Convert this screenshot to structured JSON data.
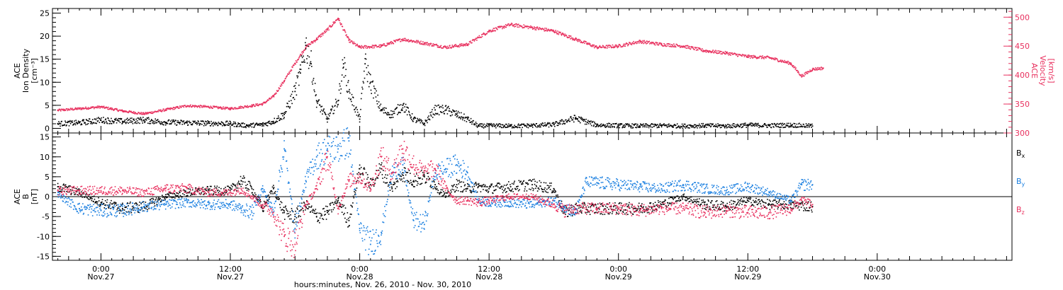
{
  "colors": {
    "black": "#000000",
    "pink": "#e8305e",
    "blue": "#1a7fe0",
    "axis": "#000000"
  },
  "xaxis": {
    "title": "hours:minutes, Nov. 26, 2010 - Nov. 30, 2010",
    "range_hours": [
      -4.5,
      84.5
    ],
    "ticks": [
      {
        "t": 0,
        "time": "0:00",
        "date": "Nov.27"
      },
      {
        "t": 12,
        "time": "12:00",
        "date": "Nov.27"
      },
      {
        "t": 24,
        "time": "0:00",
        "date": "Nov.28"
      },
      {
        "t": 36,
        "time": "12:00",
        "date": "Nov.28"
      },
      {
        "t": 48,
        "time": "0:00",
        "date": "Nov.29"
      },
      {
        "t": 60,
        "time": "12:00",
        "date": "Nov.29"
      },
      {
        "t": 72,
        "time": "0:00",
        "date": "Nov.30"
      }
    ]
  },
  "chart_data": [
    {
      "type": "scatter",
      "ylabel_left": [
        "ACE",
        "Ion Density",
        "[cm⁻³]"
      ],
      "ylabel_right": [
        "ACE",
        "Velocity",
        "[km/s]"
      ],
      "ylim_left": [
        -1,
        26
      ],
      "yticks_left": [
        0,
        5,
        10,
        15,
        20,
        25
      ],
      "ylim_right": [
        300,
        515
      ],
      "yticks_right": [
        300,
        350,
        400,
        450,
        500
      ],
      "series": [
        {
          "axis": "left",
          "color": "black",
          "points": [
            [
              -4,
              1
            ],
            [
              -2,
              1.2
            ],
            [
              0,
              1.8
            ],
            [
              2,
              1.5
            ],
            [
              4,
              1.8
            ],
            [
              6,
              1.3
            ],
            [
              8,
              1.2
            ],
            [
              10,
              1.1
            ],
            [
              12,
              1
            ],
            [
              13.5,
              0.6
            ],
            [
              15,
              0.8
            ],
            [
              16,
              1.5
            ],
            [
              17,
              3
            ],
            [
              18,
              8
            ],
            [
              18.5,
              12
            ],
            [
              19,
              18
            ],
            [
              19.5,
              14
            ],
            [
              20,
              6
            ],
            [
              21,
              2
            ],
            [
              22,
              6
            ],
            [
              22.5,
              14
            ],
            [
              23,
              8
            ],
            [
              24,
              2
            ],
            [
              24.5,
              14
            ],
            [
              25,
              10
            ],
            [
              26,
              4
            ],
            [
              27,
              3
            ],
            [
              28,
              5
            ],
            [
              29,
              2
            ],
            [
              30,
              1
            ],
            [
              31,
              4
            ],
            [
              32,
              4
            ],
            [
              33,
              3
            ],
            [
              34,
              2
            ],
            [
              35,
              0.5
            ],
            [
              36,
              0.6
            ],
            [
              38,
              0.5
            ],
            [
              40,
              0.6
            ],
            [
              42,
              0.8
            ],
            [
              44,
              2.2
            ],
            [
              46,
              0.7
            ],
            [
              48,
              0.6
            ],
            [
              50,
              0.5
            ],
            [
              52,
              0.6
            ],
            [
              54,
              0.5
            ],
            [
              56,
              0.6
            ],
            [
              58,
              0.5
            ],
            [
              60,
              0.7
            ],
            [
              62,
              0.6
            ],
            [
              64,
              0.7
            ],
            [
              66,
              0.5
            ]
          ]
        },
        {
          "axis": "right",
          "color": "pink",
          "points": [
            [
              -4,
              339
            ],
            [
              -2,
              342
            ],
            [
              0,
              345
            ],
            [
              2,
              338
            ],
            [
              4,
              333
            ],
            [
              6,
              340
            ],
            [
              8,
              347
            ],
            [
              10,
              345
            ],
            [
              12,
              342
            ],
            [
              14,
              347
            ],
            [
              15,
              350
            ],
            [
              16,
              363
            ],
            [
              17,
              390
            ],
            [
              18,
              420
            ],
            [
              19,
              448
            ],
            [
              20,
              462
            ],
            [
              21,
              478
            ],
            [
              22,
              498
            ],
            [
              23,
              460
            ],
            [
              24,
              448
            ],
            [
              26,
              450
            ],
            [
              28,
              462
            ],
            [
              30,
              455
            ],
            [
              32,
              448
            ],
            [
              34,
              453
            ],
            [
              36,
              476
            ],
            [
              38,
              487
            ],
            [
              40,
              482
            ],
            [
              42,
              476
            ],
            [
              44,
              462
            ],
            [
              46,
              448
            ],
            [
              48,
              450
            ],
            [
              50,
              458
            ],
            [
              52,
              453
            ],
            [
              54,
              450
            ],
            [
              56,
              442
            ],
            [
              58,
              438
            ],
            [
              60,
              432
            ],
            [
              62,
              430
            ],
            [
              64,
              420
            ],
            [
              65,
              398
            ],
            [
              66,
              410
            ],
            [
              67,
              412
            ]
          ]
        }
      ]
    },
    {
      "type": "scatter",
      "ylabel_left": [
        "ACE",
        "B",
        "[nT]"
      ],
      "ylim": [
        -16,
        16
      ],
      "yticks": [
        -15,
        -10,
        -5,
        0,
        5,
        10,
        15
      ],
      "series": [
        {
          "name": "Bx",
          "color": "black",
          "points": [
            [
              -4,
              2.5
            ],
            [
              -2,
              1
            ],
            [
              0,
              -1.5
            ],
            [
              2,
              -3
            ],
            [
              4,
              -2.5
            ],
            [
              6,
              0
            ],
            [
              8,
              1
            ],
            [
              10,
              1.5
            ],
            [
              12,
              1.5
            ],
            [
              13,
              4
            ],
            [
              14,
              2
            ],
            [
              15,
              -3
            ],
            [
              16,
              2
            ],
            [
              17,
              -4
            ],
            [
              18,
              -5
            ],
            [
              19,
              -2
            ],
            [
              20,
              -5
            ],
            [
              21,
              -4
            ],
            [
              22,
              -1
            ],
            [
              23,
              -6
            ],
            [
              24,
              7
            ],
            [
              25,
              3
            ],
            [
              26,
              7
            ],
            [
              27,
              2
            ],
            [
              28,
              6
            ],
            [
              29,
              4
            ],
            [
              30,
              5
            ],
            [
              31,
              3
            ],
            [
              32,
              0
            ],
            [
              33,
              3
            ],
            [
              34,
              2
            ],
            [
              35,
              2.5
            ],
            [
              36,
              2
            ],
            [
              38,
              2.5
            ],
            [
              40,
              3
            ],
            [
              42,
              2
            ],
            [
              43,
              -4
            ],
            [
              44,
              -3
            ],
            [
              46,
              -3
            ],
            [
              48,
              -3
            ],
            [
              50,
              -3
            ],
            [
              52,
              -2
            ],
            [
              54,
              0
            ],
            [
              56,
              -2
            ],
            [
              58,
              -2.5
            ],
            [
              60,
              -1
            ],
            [
              62,
              -2
            ],
            [
              64,
              -2
            ],
            [
              66,
              -2.5
            ]
          ]
        },
        {
          "name": "By",
          "color": "blue",
          "points": [
            [
              -4,
              0.5
            ],
            [
              -2,
              -3
            ],
            [
              0,
              -3.5
            ],
            [
              2,
              -3.5
            ],
            [
              4,
              -2.5
            ],
            [
              6,
              -2
            ],
            [
              8,
              -1.5
            ],
            [
              10,
              -2
            ],
            [
              12,
              -2
            ],
            [
              13,
              -3
            ],
            [
              14,
              -4
            ],
            [
              15,
              2
            ],
            [
              16,
              -4
            ],
            [
              17,
              12
            ],
            [
              18,
              -8
            ],
            [
              19,
              4
            ],
            [
              20,
              10
            ],
            [
              21,
              12
            ],
            [
              22,
              12
            ],
            [
              23,
              14
            ],
            [
              24,
              -8
            ],
            [
              25,
              -12
            ],
            [
              26,
              -9
            ],
            [
              27,
              6
            ],
            [
              28,
              8
            ],
            [
              29,
              -6
            ],
            [
              30,
              -7
            ],
            [
              31,
              6
            ],
            [
              32,
              7
            ],
            [
              33,
              8
            ],
            [
              34,
              6
            ],
            [
              35,
              -1
            ],
            [
              36,
              -1.5
            ],
            [
              38,
              -1.5
            ],
            [
              40,
              -2
            ],
            [
              42,
              -1
            ],
            [
              43,
              -2.5
            ],
            [
              44,
              -4
            ],
            [
              45,
              3.5
            ],
            [
              46,
              3.5
            ],
            [
              48,
              3
            ],
            [
              50,
              2.5
            ],
            [
              52,
              2
            ],
            [
              54,
              3
            ],
            [
              56,
              2
            ],
            [
              58,
              1.5
            ],
            [
              60,
              2.5
            ],
            [
              62,
              1
            ],
            [
              64,
              -1
            ],
            [
              65,
              3
            ],
            [
              66,
              3
            ]
          ]
        },
        {
          "name": "Bz",
          "color": "pink",
          "points": [
            [
              -4,
              1.5
            ],
            [
              -2,
              1.5
            ],
            [
              0,
              1.5
            ],
            [
              2,
              1.5
            ],
            [
              4,
              1
            ],
            [
              6,
              2
            ],
            [
              8,
              2
            ],
            [
              10,
              1
            ],
            [
              12,
              1
            ],
            [
              13,
              2
            ],
            [
              14,
              0
            ],
            [
              15,
              -2
            ],
            [
              16,
              -4
            ],
            [
              17,
              -10
            ],
            [
              18,
              -12
            ],
            [
              19,
              -2
            ],
            [
              20,
              2
            ],
            [
              21,
              10
            ],
            [
              22,
              -3
            ],
            [
              23,
              4
            ],
            [
              24,
              5
            ],
            [
              25,
              2
            ],
            [
              26,
              10
            ],
            [
              27,
              6
            ],
            [
              28,
              12
            ],
            [
              29,
              8
            ],
            [
              30,
              6
            ],
            [
              31,
              7
            ],
            [
              32,
              2
            ],
            [
              33,
              -1
            ],
            [
              34,
              -1
            ],
            [
              35,
              -1.5
            ],
            [
              36,
              -1
            ],
            [
              38,
              0
            ],
            [
              40,
              0
            ],
            [
              42,
              -2
            ],
            [
              43,
              -3.5
            ],
            [
              44,
              -3
            ],
            [
              46,
              -3
            ],
            [
              48,
              -3
            ],
            [
              50,
              -3.5
            ],
            [
              52,
              -3
            ],
            [
              54,
              -3
            ],
            [
              56,
              -4
            ],
            [
              58,
              -3.5
            ],
            [
              60,
              -4
            ],
            [
              62,
              -4
            ],
            [
              64,
              -3
            ],
            [
              65,
              -1
            ],
            [
              66,
              -2
            ]
          ]
        }
      ]
    }
  ]
}
